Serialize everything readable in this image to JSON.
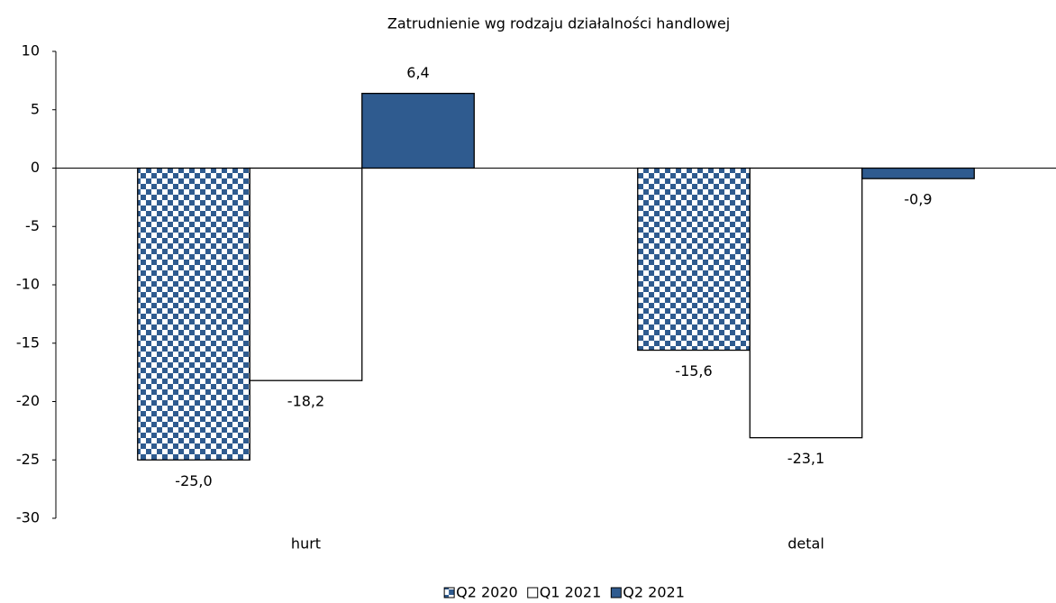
{
  "chart_data": {
    "type": "bar",
    "title": "Zatrudnienie wg rodzaju działalności handlowej",
    "categories": [
      "hurt",
      "detal"
    ],
    "series": [
      {
        "name": "Q2 2020",
        "color": "#2f5b8f",
        "pattern": "checker",
        "values": [
          -25.0,
          -15.6
        ],
        "value_labels": [
          "-25,0",
          "-15,6"
        ]
      },
      {
        "name": "Q1 2021",
        "color": "#ffffff",
        "values": [
          -18.2,
          -23.1
        ],
        "value_labels": [
          "-18,2",
          "-23,1"
        ]
      },
      {
        "name": "Q2 2021",
        "color": "#2f5b8f",
        "values": [
          6.4,
          -0.9
        ],
        "value_labels": [
          "6,4",
          "-0,9"
        ]
      }
    ],
    "ylim": [
      -30,
      10
    ],
    "yticks": [
      -30,
      -25,
      -20,
      -15,
      -10,
      -5,
      0,
      5,
      10
    ],
    "grid": false,
    "legend": "bottom"
  }
}
